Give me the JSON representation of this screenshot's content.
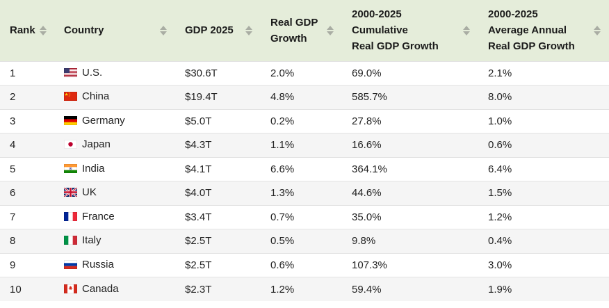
{
  "table": {
    "columns": [
      {
        "id": "rank",
        "label": "Rank"
      },
      {
        "id": "country",
        "label": "Country"
      },
      {
        "id": "gdp-2025",
        "label": "GDP 2025"
      },
      {
        "id": "real-gdp-growth",
        "label": "Real GDP\nGrowth"
      },
      {
        "id": "cumulative-growth",
        "label": "2000-2025\nCumulative\nReal GDP Growth"
      },
      {
        "id": "avg-annual-growth",
        "label": "2000-2025\nAverage Annual\nReal GDP Growth"
      }
    ],
    "rows": [
      {
        "rank": "1",
        "flag": "us",
        "country": "U.S.",
        "gdp_2025": "$30.6T",
        "real_gdp_growth": "2.0%",
        "cumulative_growth": "69.0%",
        "avg_annual_growth": "2.1%"
      },
      {
        "rank": "2",
        "flag": "cn",
        "country": "China",
        "gdp_2025": "$19.4T",
        "real_gdp_growth": "4.8%",
        "cumulative_growth": "585.7%",
        "avg_annual_growth": "8.0%"
      },
      {
        "rank": "3",
        "flag": "de",
        "country": "Germany",
        "gdp_2025": "$5.0T",
        "real_gdp_growth": "0.2%",
        "cumulative_growth": "27.8%",
        "avg_annual_growth": "1.0%"
      },
      {
        "rank": "4",
        "flag": "jp",
        "country": "Japan",
        "gdp_2025": "$4.3T",
        "real_gdp_growth": "1.1%",
        "cumulative_growth": "16.6%",
        "avg_annual_growth": "0.6%"
      },
      {
        "rank": "5",
        "flag": "in",
        "country": "India",
        "gdp_2025": "$4.1T",
        "real_gdp_growth": "6.6%",
        "cumulative_growth": "364.1%",
        "avg_annual_growth": "6.4%"
      },
      {
        "rank": "6",
        "flag": "gb",
        "country": "UK",
        "gdp_2025": "$4.0T",
        "real_gdp_growth": "1.3%",
        "cumulative_growth": "44.6%",
        "avg_annual_growth": "1.5%"
      },
      {
        "rank": "7",
        "flag": "fr",
        "country": "France",
        "gdp_2025": "$3.4T",
        "real_gdp_growth": "0.7%",
        "cumulative_growth": "35.0%",
        "avg_annual_growth": "1.2%"
      },
      {
        "rank": "8",
        "flag": "it",
        "country": "Italy",
        "gdp_2025": "$2.5T",
        "real_gdp_growth": "0.5%",
        "cumulative_growth": "9.8%",
        "avg_annual_growth": "0.4%"
      },
      {
        "rank": "9",
        "flag": "ru",
        "country": "Russia",
        "gdp_2025": "$2.5T",
        "real_gdp_growth": "0.6%",
        "cumulative_growth": "107.3%",
        "avg_annual_growth": "3.0%"
      },
      {
        "rank": "10",
        "flag": "ca",
        "country": "Canada",
        "gdp_2025": "$2.3T",
        "real_gdp_growth": "1.2%",
        "cumulative_growth": "59.4%",
        "avg_annual_growth": "1.9%"
      }
    ]
  },
  "icons": {
    "sort": "sort-arrows-icon",
    "flags": [
      "us",
      "cn",
      "de",
      "jp",
      "in",
      "gb",
      "fr",
      "it",
      "ru",
      "ca"
    ]
  },
  "colors": {
    "header_bg": "#e5edda",
    "row_alt_bg": "#f5f5f5",
    "row_border": "#e3e3e3",
    "sort_arrow": "#a9ada3",
    "text": "#1f1f1f"
  }
}
